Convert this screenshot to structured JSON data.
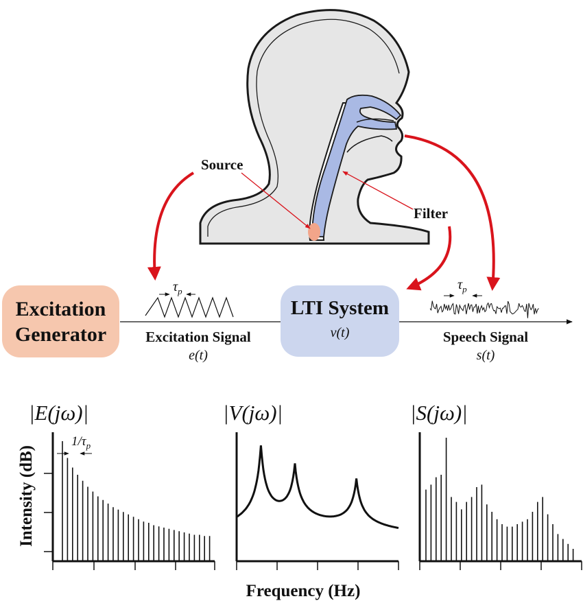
{
  "labels": {
    "source": "Source",
    "filter": "Filter",
    "excitation_generator_line1": "Excitation",
    "excitation_generator_line2": "Generator",
    "lti_system": "LTI System",
    "lti_symbol": "v(t)",
    "excitation_signal": "Excitation Signal",
    "excitation_symbol": "e(t)",
    "speech_signal": "Speech Signal",
    "speech_symbol": "s(t)",
    "tau_p": "τ",
    "tau_sub": "p",
    "inv_tau": "1/τ",
    "spectrum_e": "|E(jω)|",
    "spectrum_v": "|V(jω)|",
    "spectrum_s": "|S(jω)|",
    "y_axis": "Intensity (dB)",
    "x_axis": "Frequency (Hz)"
  },
  "colors": {
    "head_fill": "#e6e6e6",
    "vocal_tract": "#a9b9e4",
    "source_dot": "#f2a58a",
    "arrow_red": "#d9141c",
    "generator_box": "#f6c7ae",
    "lti_box": "#ccd6ee"
  },
  "spectra": {
    "excitation_harmonics": [
      100,
      86,
      78,
      72,
      67,
      62,
      58,
      54,
      51,
      48,
      45,
      43,
      41,
      39,
      37,
      35,
      33,
      32,
      30,
      29,
      28,
      27,
      26,
      25,
      24,
      23,
      22,
      22,
      21,
      21
    ],
    "filter_formants": [
      {
        "freq": 0.15,
        "gain": 100
      },
      {
        "freq": 0.36,
        "gain": 72
      },
      {
        "freq": 0.74,
        "gain": 62
      }
    ],
    "speech_harmonics": [
      58,
      62,
      68,
      70,
      100,
      52,
      48,
      42,
      48,
      52,
      60,
      62,
      46,
      40,
      34,
      30,
      28,
      28,
      30,
      32,
      34,
      40,
      48,
      52,
      38,
      30,
      22,
      18,
      14,
      10
    ]
  }
}
